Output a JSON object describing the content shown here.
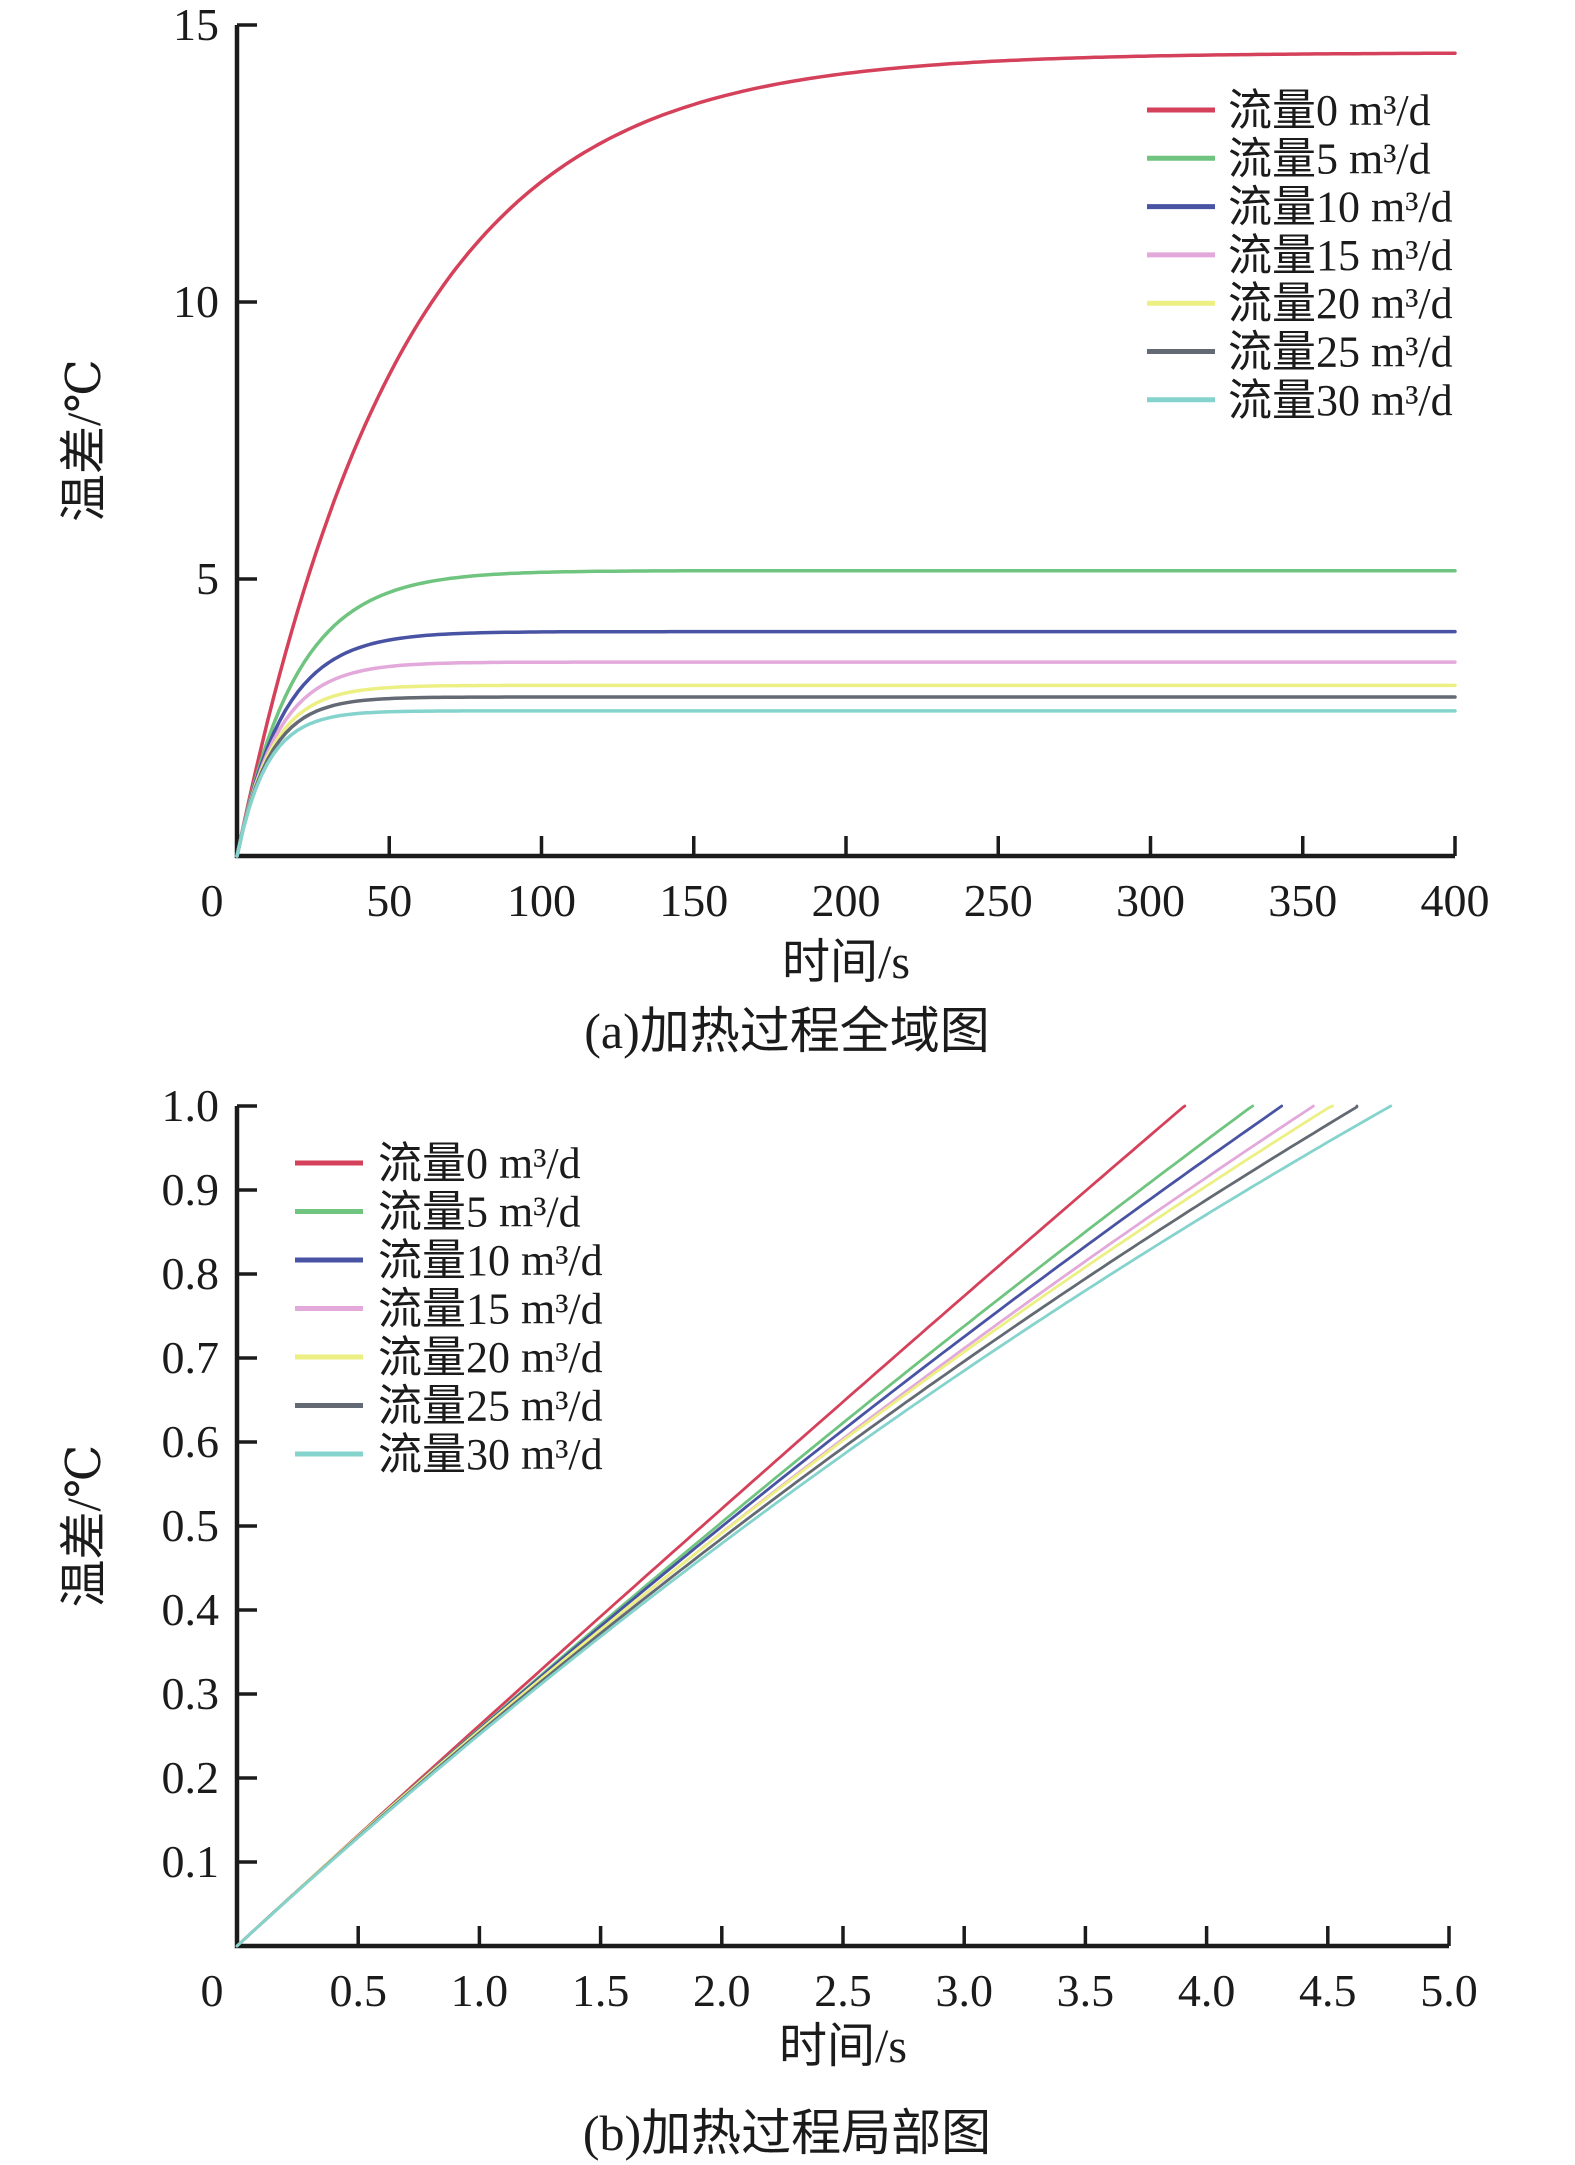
{
  "page": {
    "background": "#ffffff",
    "text_color": "#1b1b1b"
  },
  "chart_data": [
    {
      "id": "a",
      "type": "line",
      "caption": "(a)加热过程全域图",
      "xlabel": "时间/s",
      "ylabel": "温差/℃",
      "xlim": [
        0,
        400
      ],
      "ylim": [
        0,
        15
      ],
      "x_ticks": [
        "0",
        "50",
        "100",
        "150",
        "200",
        "250",
        "300",
        "350",
        "400"
      ],
      "y_ticks": [
        "5",
        "10",
        "15"
      ],
      "grid": false,
      "legend_position": "top-right",
      "model": "dT(t) = steady_state_C * (1 - exp(-t / tau_s))",
      "series": [
        {
          "name": "流量0 m³/d",
          "flow_m3_per_d": 0,
          "color": "#d5415a",
          "steady_state_C": 14.5,
          "tau_s": 54.7
        },
        {
          "name": "流量5 m³/d",
          "flow_m3_per_d": 5,
          "color": "#6fc47f",
          "steady_state_C": 5.15,
          "tau_s": 19.4
        },
        {
          "name": "流量10 m³/d",
          "flow_m3_per_d": 10,
          "color": "#4953a4",
          "steady_state_C": 4.05,
          "tau_s": 15.2
        },
        {
          "name": "流量15 m³/d",
          "flow_m3_per_d": 15,
          "color": "#e2a9da",
          "steady_state_C": 3.5,
          "tau_s": 13.2
        },
        {
          "name": "流量20 m³/d",
          "flow_m3_per_d": 20,
          "color": "#ecf083",
          "steady_state_C": 3.08,
          "tau_s": 11.5
        },
        {
          "name": "流量25 m³/d",
          "flow_m3_per_d": 25,
          "color": "#636a73",
          "steady_state_C": 2.87,
          "tau_s": 10.8
        },
        {
          "name": "流量30 m³/d",
          "flow_m3_per_d": 30,
          "color": "#85d3cd",
          "steady_state_C": 2.62,
          "tau_s": 9.9
        }
      ]
    },
    {
      "id": "b",
      "type": "line",
      "caption": "(b)加热过程局部图",
      "xlabel": "时间/s",
      "ylabel": "温差/℃",
      "xlim": [
        0,
        5
      ],
      "ylim": [
        0,
        1.0
      ],
      "x_ticks": [
        "0",
        "0.5",
        "1.0",
        "1.5",
        "2.0",
        "2.5",
        "3.0",
        "3.5",
        "4.0",
        "4.5",
        "5.0"
      ],
      "y_ticks": [
        "0.1",
        "0.2",
        "0.3",
        "0.4",
        "0.5",
        "0.6",
        "0.7",
        "0.8",
        "0.9",
        "1.0"
      ],
      "grid": false,
      "legend_position": "top-left",
      "model": "dT(t) = steady_state_C * (1 - exp(-t / tau_s)), curve drawn until dT = 1.0",
      "series": [
        {
          "name": "流量0 m³/d",
          "flow_m3_per_d": 0,
          "color": "#d5415a",
          "steady_state_C": 14.5,
          "tau_s": 54.7,
          "time_to_reach_1C_s": 3.91
        },
        {
          "name": "流量5 m³/d",
          "flow_m3_per_d": 5,
          "color": "#6fc47f",
          "steady_state_C": 5.15,
          "tau_s": 19.4,
          "time_to_reach_1C_s": 4.19
        },
        {
          "name": "流量10 m³/d",
          "flow_m3_per_d": 10,
          "color": "#4953a4",
          "steady_state_C": 4.05,
          "tau_s": 15.2,
          "time_to_reach_1C_s": 4.31
        },
        {
          "name": "流量15 m³/d",
          "flow_m3_per_d": 15,
          "color": "#e2a9da",
          "steady_state_C": 3.5,
          "tau_s": 13.2,
          "time_to_reach_1C_s": 4.44
        },
        {
          "name": "流量20 m³/d",
          "flow_m3_per_d": 20,
          "color": "#ecf083",
          "steady_state_C": 3.08,
          "tau_s": 11.5,
          "time_to_reach_1C_s": 4.52
        },
        {
          "name": "流量25 m³/d",
          "flow_m3_per_d": 25,
          "color": "#636a73",
          "steady_state_C": 2.87,
          "tau_s": 10.8,
          "time_to_reach_1C_s": 4.62
        },
        {
          "name": "流量30 m³/d",
          "flow_m3_per_d": 30,
          "color": "#85d3cd",
          "steady_state_C": 2.62,
          "tau_s": 9.9,
          "time_to_reach_1C_s": 4.76
        }
      ]
    }
  ]
}
